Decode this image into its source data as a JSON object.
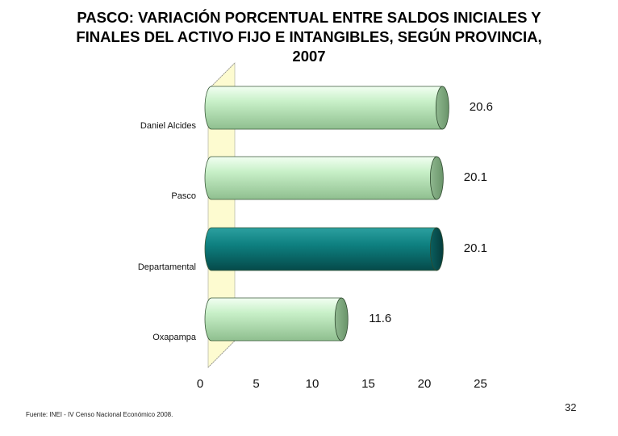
{
  "title_lines": [
    "PASCO: VARIACIÓN PORCENTUAL ENTRE SALDOS INICIALES Y",
    "FINALES DEL ACTIVO FIJO E INTANGIBLES, SEGÚN PROVINCIA,",
    "2007"
  ],
  "chart_data": {
    "type": "bar",
    "orientation": "horizontal",
    "title": "PASCO: VARIACIÓN PORCENTUAL ENTRE SALDOS INICIALES Y FINALES DEL ACTIVO FIJO E INTANGIBLES, SEGÚN PROVINCIA, 2007",
    "categories": [
      "Daniel Alcides",
      "Pasco",
      "Departamental",
      "Oxapampa"
    ],
    "values": [
      20.6,
      20.1,
      20.1,
      11.6
    ],
    "data_labels": [
      "20.6",
      "20.1",
      "20.1",
      "11.6"
    ],
    "highlight": "Departamental",
    "xlim": [
      0,
      25
    ],
    "xticks": [
      0,
      5,
      10,
      15,
      20,
      25
    ],
    "xtick_labels": [
      "0",
      "5",
      "10",
      "15",
      "20",
      "25"
    ],
    "xlabel": "",
    "ylabel": "",
    "grid": false,
    "colors": {
      "bar_light": "#c8f0c8",
      "bar_light_dark": "#7fa87f",
      "bar_highlight": "#0e8080",
      "bar_highlight_dark": "#064848",
      "wall": "#fdfbd0"
    }
  },
  "footer": {
    "source": "Fuente: INEI - IV Censo Nacional Económico 2008.",
    "page_number": "32"
  }
}
